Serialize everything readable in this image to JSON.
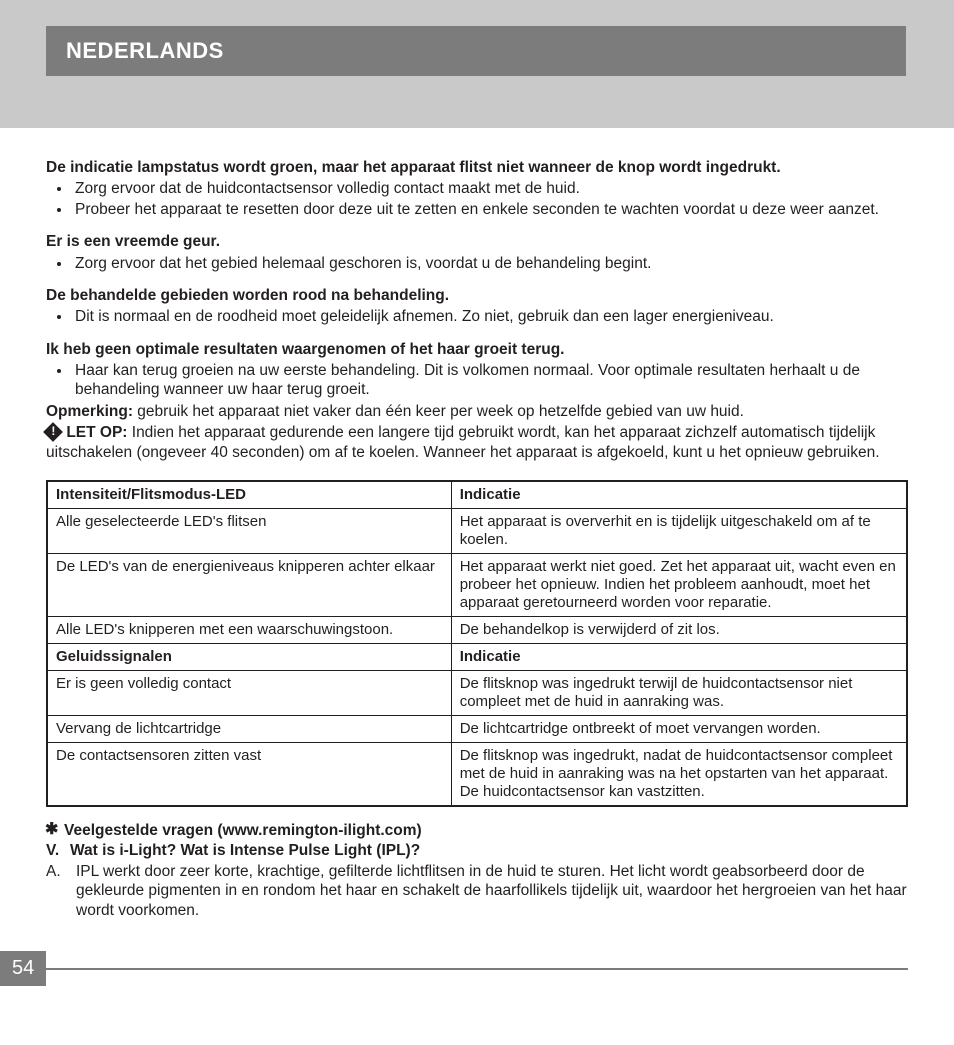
{
  "header": {
    "title": "NEDERLANDS"
  },
  "sections": [
    {
      "title": "De indicatie lampstatus wordt groen, maar het apparaat flitst niet wanneer de knop wordt ingedrukt.",
      "bullets": [
        "Zorg ervoor dat de huidcontactsensor volledig contact maakt met de huid.",
        "Probeer het apparaat te resetten door deze uit te zetten en enkele seconden te wachten voordat u deze weer aanzet."
      ]
    },
    {
      "title": "Er is een vreemde geur.",
      "bullets": [
        "Zorg ervoor dat het gebied helemaal geschoren is, voordat u de behandeling begint."
      ]
    },
    {
      "title": "De behandelde gebieden worden rood na behandeling.",
      "bullets": [
        "Dit is normaal en de roodheid moet geleidelijk afnemen. Zo niet, gebruik dan een lager energieniveau."
      ]
    },
    {
      "title": "Ik heb geen optimale resultaten waargenomen of het haar groeit terug.",
      "bullets": [
        "Haar kan terug groeien na uw eerste behandeling. Dit is volkomen normaal. Voor optimale resultaten herhaalt u de behandeling wanneer uw haar terug groeit."
      ],
      "note_label": "Opmerking:",
      "note_text": " gebruik het apparaat niet vaker dan één keer per week op hetzelfde gebied van uw huid.",
      "caution_label": "LET OP:",
      "caution_text": "  Indien het apparaat gedurende een langere tijd gebruikt wordt, kan het apparaat zichzelf automatisch tijdelijk uitschakelen (ongeveer 40 seconden) om af te koelen. Wanneer het apparaat is afgekoeld, kunt u het opnieuw gebruiken."
    }
  ],
  "table": {
    "rows": [
      {
        "left": "Intensiteit/Flitsmodus-LED",
        "right": "Indicatie",
        "header": true
      },
      {
        "left": "Alle geselecteerde LED's flitsen",
        "right": "Het apparaat is oververhit en is tijdelijk uitgeschakeld om af te koelen."
      },
      {
        "left": "De LED's van de energieniveaus knipperen achter elkaar",
        "right": "Het apparaat werkt niet goed. Zet het apparaat uit, wacht even en probeer het opnieuw. Indien het probleem aanhoudt, moet het apparaat geretourneerd worden voor reparatie."
      },
      {
        "left": "Alle LED's knipperen met een waarschuwingstoon.",
        "right": "De behandelkop is verwijderd of zit los."
      },
      {
        "left": "Geluidssignalen",
        "right": "Indicatie",
        "header": true
      },
      {
        "left": "Er is geen volledig contact",
        "right": "De flitsknop was ingedrukt terwijl de huidcontactsensor niet compleet met de huid in aanraking was."
      },
      {
        "left": "Vervang de lichtcartridge",
        "right": "De lichtcartridge ontbreekt of moet vervangen worden."
      },
      {
        "left": "De contactsensoren zitten vast",
        "right": "De flitsknop was ingedrukt, nadat de huidcontactsensor compleet met de huid in aanraking was na het opstarten van het apparaat. De huidcontactsensor kan vastzitten."
      }
    ]
  },
  "faq": {
    "heading": "Veelgestelde vragen (www.remington-ilight.com)",
    "q_label": "V.",
    "q_text": "Wat is i-Light? Wat is Intense Pulse Light (IPL)?",
    "a_label": "A.",
    "a_text": "IPL werkt door zeer korte, krachtige, gefilterde lichtflitsen in de huid te sturen. Het licht wordt geabsorbeerd door de gekleurde pigmenten in en rondom het haar en schakelt de haarfollikels tijdelijk uit, waardoor het hergroeien van het haar wordt voorkomen."
  },
  "page_number": "54",
  "colors": {
    "header_bg": "#c9c9c9",
    "title_bar_bg": "#7c7c7c",
    "text": "#231f20",
    "white": "#ffffff"
  }
}
